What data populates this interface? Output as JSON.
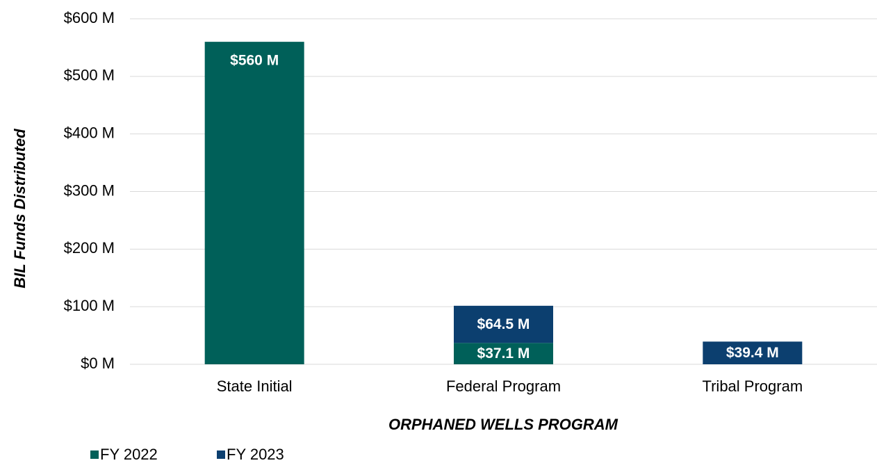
{
  "chart_data": {
    "type": "stacked_bar",
    "y_label": "BIL Funds Distributed",
    "x_label": "ORPHANED WELLS PROGRAM",
    "categories": [
      "State Initial",
      "Federal Program",
      "Tribal Program"
    ],
    "series": [
      {
        "name": "FY 2022",
        "color": "#006059",
        "values": [
          560,
          37.1,
          null
        ],
        "value_labels": [
          "$560 M",
          "$37.1 M",
          null
        ]
      },
      {
        "name": "FY 2023",
        "color": "#0c3f6f",
        "values": [
          null,
          64.5,
          39.4
        ],
        "value_labels": [
          null,
          "$64.5 M",
          "$39.4 M"
        ]
      }
    ],
    "ylim": [
      0,
      600
    ],
    "yticks": [
      {
        "value": 0,
        "label": "$0 M"
      },
      {
        "value": 100,
        "label": "$100 M"
      },
      {
        "value": 200,
        "label": "$200 M"
      },
      {
        "value": 300,
        "label": "$300 M"
      },
      {
        "value": 400,
        "label": "$400 M"
      },
      {
        "value": 500,
        "label": "$500 M"
      },
      {
        "value": 600,
        "label": "$600 M"
      }
    ],
    "grid": true,
    "legend": "bottom-left"
  }
}
